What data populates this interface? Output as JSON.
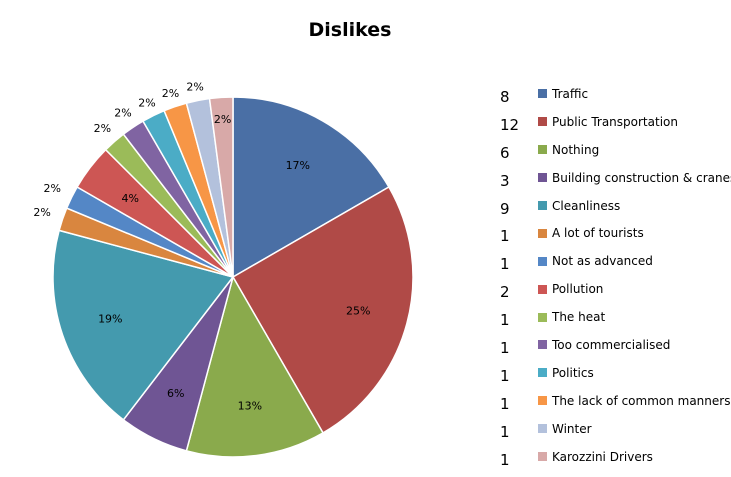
{
  "chart_data": {
    "type": "pie",
    "title": "Dislikes",
    "categories": [
      "Traffic",
      "Public Transportation",
      "Nothing",
      "Building construction & cranes",
      "Cleanliness",
      "A lot of tourists",
      "Not as advanced",
      "Pollution",
      "The heat",
      "Too commercialised",
      "Politics",
      "The lack of common manners",
      "Winter",
      "Karozzini Drivers"
    ],
    "values": [
      8,
      12,
      6,
      3,
      9,
      1,
      1,
      2,
      1,
      1,
      1,
      1,
      1,
      1
    ],
    "percent_labels": [
      "17%",
      "25%",
      "13%",
      "6%",
      "19%",
      "2%",
      "2%",
      "4%",
      "2%",
      "2%",
      "2%",
      "2%",
      "2%",
      "2%"
    ],
    "colors": [
      "#4a6fa5",
      "#b04a47",
      "#8aaa4c",
      "#6f5594",
      "#449aae",
      "#d9863f",
      "#5487c6",
      "#cd5654",
      "#9bbb59",
      "#8064a2",
      "#4bacc6",
      "#f79646",
      "#b3c1dc",
      "#d8a9a8"
    ],
    "legend_position": "right"
  }
}
